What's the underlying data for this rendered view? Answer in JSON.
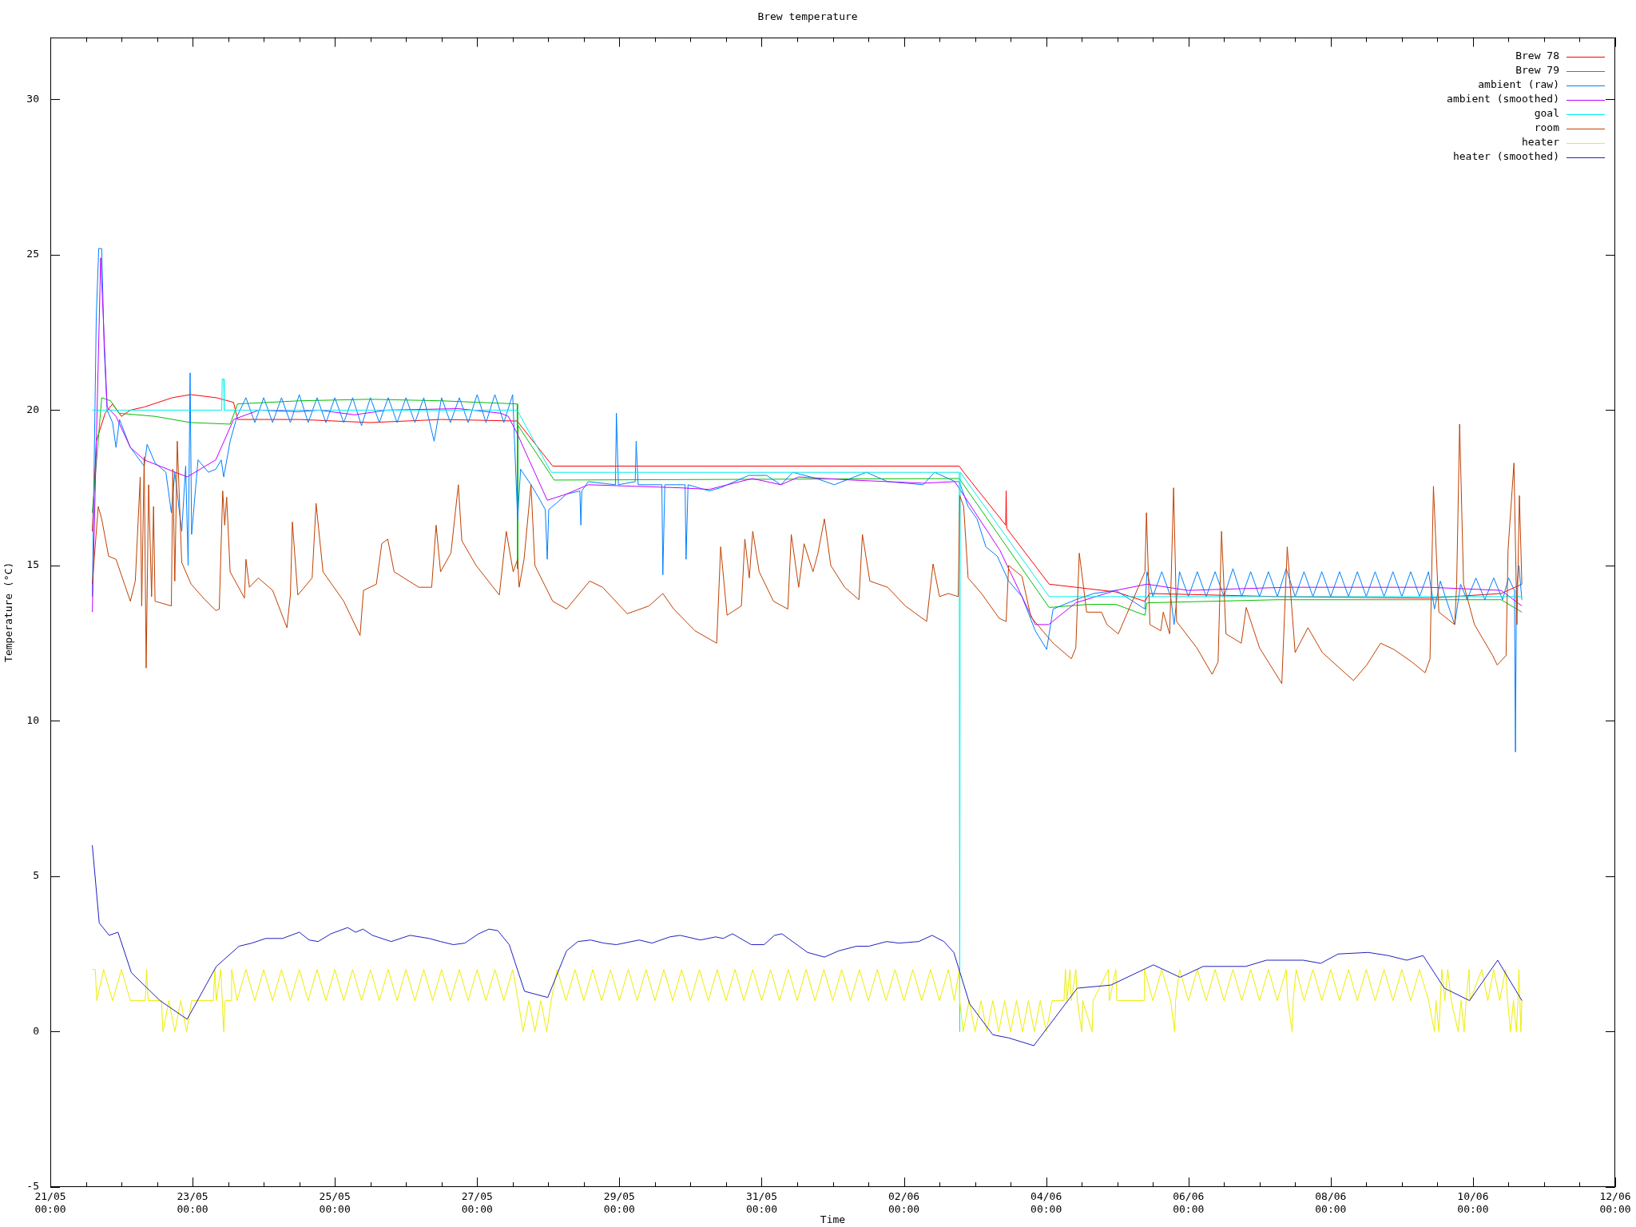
{
  "chart_data": {
    "type": "line",
    "title": "Brew temperature",
    "xlabel": "Time",
    "ylabel": "Temperature (°C)",
    "xlim": [
      "--05-21T00:00",
      "--06-12T00:00"
    ],
    "ylim": [
      -5,
      32
    ],
    "xticks": [
      {
        "value": "--05-21T00:00",
        "label": "21/05\n00:00"
      },
      {
        "value": "--05-21T12:00",
        "label": null
      },
      {
        "value": "--05-22T00:00",
        "label": null
      },
      {
        "value": "--05-22T12:00",
        "label": null
      },
      {
        "value": "--05-23T00:00",
        "label": "23/05\n00:00"
      },
      {
        "value": "--05-23T12:00",
        "label": null
      },
      {
        "value": "--05-24T00:00",
        "label": null
      },
      {
        "value": "--05-24T12:00",
        "label": null
      },
      {
        "value": "--05-25T00:00",
        "label": "25/05\n00:00"
      },
      {
        "value": "--05-25T12:00",
        "label": null
      },
      {
        "value": "--05-26T00:00",
        "label": null
      },
      {
        "value": "--05-26T12:00",
        "label": null
      },
      {
        "value": "--05-27T00:00",
        "label": "27/05\n00:00"
      },
      {
        "value": "--05-27T12:00",
        "label": null
      },
      {
        "value": "--05-28T00:00",
        "label": null
      },
      {
        "value": "--05-28T12:00",
        "label": null
      },
      {
        "value": "--05-29T00:00",
        "label": "29/05\n00:00"
      },
      {
        "value": "--05-29T12:00",
        "label": null
      },
      {
        "value": "--05-30T00:00",
        "label": null
      },
      {
        "value": "--05-30T12:00",
        "label": null
      },
      {
        "value": "--05-31T00:00",
        "label": "31/05\n00:00"
      },
      {
        "value": "--05-31T12:00",
        "label": null
      },
      {
        "value": "--06-01T00:00",
        "label": null
      },
      {
        "value": "--06-01T12:00",
        "label": null
      },
      {
        "value": "--06-02T00:00",
        "label": "02/06\n00:00"
      },
      {
        "value": "--06-02T12:00",
        "label": null
      },
      {
        "value": "--06-03T00:00",
        "label": null
      },
      {
        "value": "--06-03T12:00",
        "label": null
      },
      {
        "value": "--06-04T00:00",
        "label": "04/06\n00:00"
      },
      {
        "value": "--06-04T12:00",
        "label": null
      },
      {
        "value": "--06-05T00:00",
        "label": null
      },
      {
        "value": "--06-05T12:00",
        "label": null
      },
      {
        "value": "--06-06T00:00",
        "label": "06/06\n00:00"
      },
      {
        "value": "--06-06T12:00",
        "label": null
      },
      {
        "value": "--06-07T00:00",
        "label": null
      },
      {
        "value": "--06-07T12:00",
        "label": null
      },
      {
        "value": "--06-08T00:00",
        "label": "08/06\n00:00"
      },
      {
        "value": "--06-08T12:00",
        "label": null
      },
      {
        "value": "--06-09T00:00",
        "label": null
      },
      {
        "value": "--06-09T12:00",
        "label": null
      },
      {
        "value": "--06-10T00:00",
        "label": "10/06\n00:00"
      },
      {
        "value": "--06-10T12:00",
        "label": null
      },
      {
        "value": "--06-11T00:00",
        "label": null
      },
      {
        "value": "--06-11T12:00",
        "label": null
      },
      {
        "value": "--06-12T00:00",
        "label": "12/06\n00:00"
      }
    ],
    "yticks": [
      -5,
      0,
      5,
      10,
      15,
      20,
      25,
      30
    ],
    "grid": false,
    "legend": "top right",
    "marker": "none",
    "line_style": "solid",
    "series": [
      {
        "name": "Brew 78",
        "color": "#ff0000",
        "x": [
          "--05-21T14:10",
          "--05-21T15:30",
          "--05-21T18:30",
          "--05-21T21:00",
          "--05-22T00:00",
          "--05-22T03:00",
          "--05-22T07:40",
          "--05-22T17:10",
          "--05-22T23:20",
          "--05-23T08:00",
          "--05-23T13:50",
          "--05-23T15:10",
          "--05-24T12:00",
          "--05-25T12:00",
          "--05-26T12:00",
          "--05-27T13:30",
          "--05-28T01:30",
          "--06-02T18:40",
          "--06-02T20:10",
          "--06-03T10:20",
          "--06-03T10:30",
          "--06-03T10:40",
          "--06-04T01:00",
          "--06-04T10:00",
          "--06-04T23:30",
          "--06-05T09:20",
          "--06-05T10:50",
          "--06-07T06:00",
          "--06-09T09:20",
          "--06-10T09:30",
          "--06-10T16:30"
        ],
        "values": [
          16.1,
          19.0,
          19.9,
          20.2,
          19.8,
          20.0,
          20.1,
          20.4,
          20.5,
          20.4,
          20.25,
          19.7,
          19.7,
          19.6,
          19.7,
          19.65,
          18.2,
          18.2,
          18.0,
          16.3,
          17.4,
          16.2,
          14.4,
          14.3,
          14.15,
          13.85,
          14.1,
          14.0,
          13.95,
          14.1,
          14.4
        ]
      },
      {
        "name": "Brew 79",
        "color": "#00c000",
        "x": [
          "--05-21T14:10",
          "--05-21T17:20",
          "--05-21T20:20",
          "--05-21T23:10",
          "--05-22T11:20",
          "--05-22T23:20",
          "--05-23T12:40",
          "--05-23T15:10",
          "--05-24T12:00",
          "--05-25T12:00",
          "--05-26T12:00",
          "--05-27T13:30",
          "--05-27T13:40",
          "--05-27T13:50",
          "--05-28T02:00",
          "--06-02T18:40",
          "--06-04T01:00",
          "--06-04T14:20",
          "--06-04T23:30",
          "--06-05T09:20",
          "--06-05T10:00",
          "--06-07T06:00",
          "--06-10T09:30",
          "--06-10T16:30"
        ],
        "values": [
          16.7,
          20.4,
          20.3,
          19.9,
          19.8,
          19.6,
          19.55,
          20.2,
          20.3,
          20.35,
          20.3,
          20.2,
          14.9,
          19.5,
          17.75,
          17.8,
          13.65,
          13.75,
          13.75,
          13.4,
          13.8,
          13.9,
          13.9,
          13.5
        ]
      },
      {
        "name": "ambient (raw)",
        "color": "#0080ff",
        "x": [
          "--05-21T14:10",
          "--05-21T15:30",
          "--05-21T16:20",
          "--05-21T17:20",
          "--05-21T18:10",
          "--05-21T19:10",
          "--05-21T21:00",
          "--05-21T22:10",
          "--05-21T23:20",
          "--05-22T03:00",
          "--05-22T07:40",
          "--05-22T08:40",
          "--05-22T11:20",
          "--05-22T15:00",
          "--05-22T16:50",
          "--05-22T18:00",
          "--05-22T20:20",
          "--05-22T21:40",
          "--05-22T22:30",
          "--05-22T23:10",
          "--05-22T23:40",
          "--05-23T01:50",
          "--05-23T05:20",
          "--05-23T07:50",
          "--05-23T09:40",
          "--05-23T10:30",
          "--05-23T12:40",
          "--05-23T15:00",
          "--05-23T18:00",
          "--05-23T21:00",
          "--05-24T00:00",
          "--05-24T03:00",
          "--05-24T06:00",
          "--05-24T09:00",
          "--05-24T12:00",
          "--05-24T15:00",
          "--05-24T18:00",
          "--05-24T21:00",
          "--05-25T00:00",
          "--05-25T03:00",
          "--05-25T06:00",
          "--05-25T09:00",
          "--05-25T12:00",
          "--05-25T15:00",
          "--05-25T18:00",
          "--05-25T21:00",
          "--05-26T00:00",
          "--05-26T03:00",
          "--05-26T06:00",
          "--05-26T09:30",
          "--05-26T12:00",
          "--05-26T15:00",
          "--05-26T18:00",
          "--05-26T21:00",
          "--05-27T00:00",
          "--05-27T03:00",
          "--05-27T06:00",
          "--05-27T09:00",
          "--05-27T12:00",
          "--05-27T13:40",
          "--05-27T14:40",
          "--05-27T18:10",
          "--05-27T20:40",
          "--05-27T23:00",
          "--05-27T23:40",
          "--05-28T00:10",
          "--05-28T02:40",
          "--05-28T06:10",
          "--05-28T10:40",
          "--05-28T11:00",
          "--05-28T11:20",
          "--05-28T13:30",
          "--05-28T22:40",
          "--05-28T23:00",
          "--05-28T23:40",
          "--05-29T05:20",
          "--05-29T05:40",
          "--05-29T06:20",
          "--05-29T14:20",
          "--05-29T14:40",
          "--05-29T15:20",
          "--05-29T22:10",
          "--05-29T22:30",
          "--05-29T23:10",
          "--05-30T06:20",
          "--05-30T10:00",
          "--05-30T19:40",
          "--05-31T01:40",
          "--05-31T06:30",
          "--05-31T10:30",
          "--05-31T18:30",
          "--06-01T00:30",
          "--06-01T11:20",
          "--06-01T18:30",
          "--06-02T06:30",
          "--06-02T10:20",
          "--06-02T17:20",
          "--06-02T18:40",
          "--06-02T21:40",
          "--06-03T00:40",
          "--06-03T03:40",
          "--06-03T07:30",
          "--06-03T11:20",
          "--06-03T15:50",
          "--06-03T20:20",
          "--06-04T00:10",
          "--06-04T02:20",
          "--06-04T10:00",
          "--06-04T16:00",
          "--06-04T23:30",
          "--06-05T09:20",
          "--06-05T10:00",
          "--06-05T12:00",
          "--06-05T15:00",
          "--06-05T18:00",
          "--06-05T19:10",
          "--06-05T21:00",
          "--06-06T00:00",
          "--06-06T03:00",
          "--06-06T06:00",
          "--06-06T09:00",
          "--06-06T12:00",
          "--06-06T15:00",
          "--06-06T18:00",
          "--06-06T21:00",
          "--06-07T00:00",
          "--06-07T03:00",
          "--06-07T06:00",
          "--06-07T09:00",
          "--06-07T12:00",
          "--06-07T15:00",
          "--06-07T18:00",
          "--06-07T21:00",
          "--06-08T00:00",
          "--06-08T03:00",
          "--06-08T06:00",
          "--06-08T09:00",
          "--06-08T12:00",
          "--06-08T15:00",
          "--06-08T18:00",
          "--06-08T21:00",
          "--06-09T00:00",
          "--06-09T03:00",
          "--06-09T06:00",
          "--06-09T09:00",
          "--06-09T11:00",
          "--06-09T13:00",
          "--06-09T15:00",
          "--06-09T17:50",
          "--06-09T19:50",
          "--06-09T22:00",
          "--06-10T01:00",
          "--06-10T04:00",
          "--06-10T07:00",
          "--06-10T10:00",
          "--06-10T12:00",
          "--06-10T14:00",
          "--06-10T14:20",
          "--06-10T14:40",
          "--06-10T15:30",
          "--06-10T16:30"
        ],
        "values": [
          14.0,
          23.0,
          25.2,
          25.2,
          22.0,
          20.0,
          19.6,
          18.8,
          19.7,
          18.8,
          18.2,
          18.9,
          18.3,
          18.0,
          16.7,
          18.0,
          16.1,
          18.2,
          15.0,
          21.2,
          16.0,
          18.4,
          18.0,
          18.1,
          18.4,
          17.85,
          19.0,
          19.8,
          20.4,
          19.6,
          20.4,
          19.6,
          20.4,
          19.6,
          20.5,
          19.6,
          20.4,
          19.6,
          20.4,
          19.6,
          20.4,
          19.5,
          20.4,
          19.6,
          20.4,
          19.6,
          20.4,
          19.6,
          20.4,
          19.0,
          20.4,
          19.6,
          20.4,
          19.6,
          20.5,
          19.6,
          20.5,
          19.6,
          20.5,
          16.5,
          18.1,
          17.6,
          17.2,
          16.8,
          15.2,
          16.8,
          17.0,
          17.3,
          17.4,
          16.3,
          17.4,
          17.7,
          17.6,
          19.9,
          17.6,
          17.7,
          19.0,
          17.6,
          17.6,
          14.7,
          17.6,
          17.6,
          15.2,
          17.6,
          17.4,
          17.5,
          17.9,
          17.9,
          17.6,
          18.0,
          17.8,
          17.6,
          18.0,
          17.7,
          17.6,
          18.0,
          17.7,
          17.7,
          16.9,
          16.5,
          15.6,
          15.3,
          14.5,
          14.0,
          12.9,
          12.3,
          13.6,
          13.9,
          14.1,
          14.2,
          13.6,
          14.8,
          14.0,
          14.8,
          14.0,
          13.1,
          14.8,
          14.0,
          14.8,
          14.0,
          14.8,
          14.0,
          14.9,
          14.0,
          14.8,
          14.0,
          14.8,
          14.0,
          14.9,
          14.0,
          14.8,
          14.0,
          14.8,
          14.0,
          14.8,
          14.0,
          14.8,
          14.0,
          14.8,
          14.0,
          14.8,
          14.0,
          14.8,
          14.0,
          14.8,
          13.6,
          14.5,
          13.9,
          13.1,
          14.4,
          13.9,
          14.6,
          13.9,
          14.6,
          13.9,
          14.6,
          14.2,
          9.0,
          14.2,
          15.0,
          13.9
        ]
      },
      {
        "name": "ambient (smoothed)",
        "color": "#c000ff",
        "x": [
          "--05-21T14:10",
          "--05-21T17:00",
          "--05-21T19:10",
          "--05-21T22:10",
          "--05-22T03:00",
          "--05-22T07:40",
          "--05-22T22:10",
          "--05-23T07:50",
          "--05-23T13:50",
          "--05-23T22:20",
          "--05-24T11:30",
          "--05-24T18:40",
          "--05-25T06:40",
          "--05-25T17:30",
          "--05-26T17:40",
          "--05-27T08:00",
          "--05-27T10:30",
          "--05-27T13:30",
          "--05-27T23:40",
          "--05-28T06:10",
          "--05-28T13:30",
          "--05-29T20:40",
          "--05-30T06:20",
          "--05-30T20:50",
          "--05-31T06:30",
          "--05-31T12:30",
          "--06-01T06:30",
          "--06-02T06:30",
          "--06-02T17:10",
          "--06-03T08:20",
          "--06-03T20:20",
          "--06-04T00:50",
          "--06-04T10:00",
          "--06-04T23:30",
          "--06-05T10:00",
          "--06-05T23:50",
          "--06-07T09:00",
          "--06-09T09:20",
          "--06-10T09:30",
          "--06-10T16:30"
        ],
        "values": [
          13.5,
          24.9,
          20.1,
          19.8,
          18.8,
          18.4,
          17.85,
          18.4,
          19.7,
          20.0,
          19.95,
          20.0,
          19.85,
          20.0,
          20.05,
          19.9,
          19.8,
          19.25,
          17.1,
          17.3,
          17.6,
          17.5,
          17.45,
          17.8,
          17.6,
          17.85,
          17.75,
          17.65,
          17.7,
          15.5,
          13.1,
          13.1,
          13.8,
          14.2,
          14.4,
          14.2,
          14.3,
          14.3,
          14.2,
          13.7
        ]
      },
      {
        "name": "goal",
        "color": "#00eeee",
        "x": [
          "--05-21T14:10",
          "--05-23T09:50",
          "--05-23T10:00",
          "--05-23T10:30",
          "--05-23T10:40",
          "--05-27T13:30",
          "--05-28T01:00",
          "--06-02T18:40",
          "--06-02T18:50",
          "--06-02T19:00",
          "--06-04T01:00",
          "--06-10T16:30"
        ],
        "values": [
          20,
          20,
          21,
          21,
          20,
          20,
          18,
          18,
          0,
          18,
          14,
          14
        ]
      },
      {
        "name": "room",
        "color": "#c04000",
        "x": [
          "--05-21T14:10",
          "--05-21T16:10",
          "--05-21T17:20",
          "--05-21T19:40",
          "--05-21T22:10",
          "--05-22T03:00",
          "--05-22T04:40",
          "--05-22T06:20",
          "--05-22T06:50",
          "--05-22T07:40",
          "--05-22T08:20",
          "--05-22T09:10",
          "--05-22T10:10",
          "--05-22T10:50",
          "--05-22T11:20",
          "--05-22T16:50",
          "--05-22T17:20",
          "--05-22T18:00",
          "--05-22T18:50",
          "--05-22T20:20",
          "--05-22T23:30",
          "--05-23T04:10",
          "--05-23T07:50",
          "--05-23T09:00",
          "--05-23T10:10",
          "--05-23T10:50",
          "--05-23T11:30",
          "--05-23T12:40",
          "--05-23T17:30",
          "--05-23T18:00",
          "--05-23T19:10",
          "--05-23T22:10",
          "--05-24T03:00",
          "--05-24T07:50",
          "--05-24T09:00",
          "--05-24T09:40",
          "--05-24T11:30",
          "--05-24T16:20",
          "--05-24T17:40",
          "--05-24T20:00",
          "--05-25T03:00",
          "--05-25T08:30",
          "--05-25T09:40",
          "--05-25T14:00",
          "--05-25T15:50",
          "--05-25T17:50",
          "--05-25T20:00",
          "--05-26T04:20",
          "--05-26T08:40",
          "--05-26T10:10",
          "--05-26T11:40",
          "--05-26T15:10",
          "--05-26T17:40",
          "--05-26T18:50",
          "--05-26T23:40",
          "--05-27T07:30",
          "--05-27T09:50",
          "--05-27T12:10",
          "--05-27T13:40",
          "--05-27T14:10",
          "--05-27T15:50",
          "--05-27T18:10",
          "--05-27T19:30",
          "--05-28T01:30",
          "--05-28T06:10",
          "--05-28T14:00",
          "--05-28T18:20",
          "--05-29T02:40",
          "--05-29T10:00",
          "--05-29T14:40",
          "--05-29T18:20",
          "--05-30T01:30",
          "--05-30T08:50",
          "--05-30T10:10",
          "--05-30T12:20",
          "--05-30T17:10",
          "--05-30T18:20",
          "--05-30T19:50",
          "--05-30T21:00",
          "--05-30T23:10",
          "--05-31T04:00",
          "--05-31T08:50",
          "--05-31T10:00",
          "--05-31T12:30",
          "--05-31T14:20",
          "--05-31T17:20",
          "--05-31T19:00",
          "--05-31T21:10",
          "--05-31T23:20",
          "--06-01T04:00",
          "--06-01T08:50",
          "--06-01T10:00",
          "--06-01T12:30",
          "--06-01T18:30",
          "--06-02T00:30",
          "--06-02T07:40",
          "--06-02T09:50",
          "--06-02T12:00",
          "--06-02T15:00",
          "--06-02T18:20",
          "--06-02T18:50",
          "--06-02T20:10",
          "--06-02T21:40",
          "--06-03T02:10",
          "--06-03T08:10",
          "--06-03T10:30",
          "--06-03T11:20",
          "--06-03T15:50",
          "--06-03T18:50",
          "--06-04T02:20",
          "--06-04T08:30",
          "--06-04T10:00",
          "--06-04T11:10",
          "--06-04T13:40",
          "--06-04T18:40",
          "--06-04T20:30",
          "--06-05T00:20",
          "--06-05T09:20",
          "--06-05T09:50",
          "--06-05T11:00",
          "--06-05T14:40",
          "--06-05T15:30",
          "--06-05T17:40",
          "--06-05T19:00",
          "--06-05T20:00",
          "--06-06T02:50",
          "--06-06T08:00",
          "--06-06T10:00",
          "--06-06T11:10",
          "--06-06T12:40",
          "--06-06T17:50",
          "--06-06T19:30",
          "--06-07T00:00",
          "--06-07T07:30",
          "--06-07T09:20",
          "--06-07T12:00",
          "--06-07T16:20",
          "--06-07T21:10",
          "--06-08T07:40",
          "--06-08T12:10",
          "--06-08T16:50",
          "--06-08T21:20",
          "--06-09T03:20",
          "--06-09T07:50",
          "--06-09T09:30",
          "--06-09T10:40",
          "--06-09T12:30",
          "--06-09T17:50",
          "--06-09T18:30",
          "--06-09T19:30",
          "--06-09T20:50",
          "--06-10T00:30",
          "--06-10T06:40",
          "--06-10T08:10",
          "--06-10T11:10",
          "--06-10T11:50",
          "--06-10T13:50",
          "--06-10T14:50",
          "--06-10T15:40",
          "--06-10T16:30"
        ],
        "values": [
          14.4,
          16.9,
          16.5,
          15.3,
          15.2,
          13.85,
          14.5,
          17.85,
          13.7,
          18.5,
          11.7,
          17.6,
          14.0,
          16.9,
          13.85,
          13.7,
          18.1,
          14.5,
          19.0,
          15.1,
          14.4,
          13.9,
          13.55,
          13.6,
          17.4,
          16.3,
          17.2,
          14.8,
          13.95,
          15.2,
          14.3,
          14.6,
          14.2,
          13.0,
          14.05,
          16.4,
          14.05,
          14.6,
          17.0,
          14.8,
          13.85,
          12.75,
          14.2,
          14.4,
          15.7,
          15.85,
          14.8,
          14.3,
          14.3,
          16.3,
          14.8,
          15.4,
          17.6,
          15.8,
          15.0,
          14.05,
          16.1,
          14.8,
          15.2,
          14.3,
          15.2,
          17.6,
          15.0,
          13.85,
          13.6,
          14.5,
          14.3,
          13.45,
          13.7,
          14.1,
          13.6,
          12.9,
          12.5,
          15.6,
          13.4,
          13.7,
          15.85,
          14.6,
          16.1,
          14.8,
          13.85,
          13.6,
          16.0,
          14.3,
          15.7,
          14.8,
          15.4,
          16.5,
          15.0,
          14.3,
          13.9,
          16.0,
          14.5,
          14.3,
          13.7,
          13.2,
          15.05,
          14.0,
          14.1,
          14.0,
          17.25,
          16.9,
          14.6,
          14.1,
          13.3,
          13.2,
          15.0,
          14.65,
          13.35,
          12.5,
          12.0,
          12.35,
          15.4,
          13.5,
          13.5,
          13.1,
          12.8,
          14.8,
          16.7,
          13.1,
          12.9,
          13.5,
          12.8,
          17.5,
          13.2,
          12.35,
          11.5,
          11.9,
          16.1,
          12.8,
          12.5,
          13.65,
          12.35,
          11.2,
          15.6,
          12.2,
          13.0,
          12.2,
          11.3,
          11.8,
          12.5,
          12.3,
          11.9,
          11.55,
          12.0,
          17.55,
          13.5,
          13.1,
          14.4,
          19.55,
          14.4,
          13.1,
          12.1,
          11.8,
          12.1,
          15.5,
          18.3,
          13.1,
          17.25,
          14.4
        ]
      },
      {
        "name": "heater",
        "color": "#eeee00",
        "x": [
          "--05-21T14:10",
          "--05-21T15:10",
          "--05-21T15:40",
          "--05-21T18:00",
          "--05-21T21:00",
          "--05-22T00:00",
          "--05-22T03:00",
          "--05-22T08:00",
          "--05-22T08:30",
          "--05-22T09:00",
          "--05-22T13:30",
          "--05-22T14:00",
          "--05-22T16:00",
          "--05-22T18:00",
          "--05-22T20:00",
          "--05-22T22:00",
          "--05-22T23:40",
          "--05-23T07:00",
          "--05-23T07:30",
          "--05-23T08:00",
          "--05-23T09:30",
          "--05-23T10:00",
          "--05-23T10:30",
          "--05-23T11:00",
          "--05-23T13:00",
          "--05-23T13:10",
          "--05-23T15:00",
          "--05-23T18:00",
          "--05-23T21:00",
          "--05-24T00:00",
          "--05-24T03:00",
          "--05-24T06:00",
          "--05-24T09:00",
          "--05-24T12:00",
          "--05-24T15:00",
          "--05-24T18:00",
          "--05-24T21:00",
          "--05-25T00:00",
          "--05-25T03:00",
          "--05-25T06:00",
          "--05-25T09:00",
          "--05-25T12:00",
          "--05-25T15:00",
          "--05-25T18:00",
          "--05-25T21:00",
          "--05-26T00:00",
          "--05-26T03:00",
          "--05-26T06:00",
          "--05-26T09:00",
          "--05-26T12:00",
          "--05-26T15:00",
          "--05-26T18:00",
          "--05-26T21:00",
          "--05-27T00:00",
          "--05-27T03:00",
          "--05-27T06:00",
          "--05-27T09:00",
          "--05-27T12:00",
          "--05-27T13:50",
          "--05-27T15:30",
          "--05-27T17:30",
          "--05-27T19:30",
          "--05-27T21:30",
          "--05-27T23:30",
          "--05-28T01:00",
          "--05-28T03:00",
          "--05-28T06:00",
          "--05-28T09:00",
          "--05-28T12:00",
          "--05-28T15:00",
          "--05-28T18:00",
          "--05-28T21:00",
          "--05-29T00:00",
          "--05-29T03:00",
          "--05-29T06:00",
          "--05-29T09:00",
          "--05-29T12:00",
          "--05-29T15:00",
          "--05-29T18:00",
          "--05-29T21:00",
          "--05-30T00:00",
          "--05-30T03:00",
          "--05-30T06:00",
          "--05-30T09:00",
          "--05-30T12:00",
          "--05-30T15:00",
          "--05-30T18:00",
          "--05-30T21:00",
          "--05-31T00:00",
          "--05-31T03:00",
          "--05-31T06:00",
          "--05-31T09:00",
          "--05-31T12:00",
          "--05-31T15:00",
          "--05-31T18:00",
          "--05-31T21:00",
          "--06-01T00:00",
          "--06-01T03:00",
          "--06-01T06:00",
          "--06-01T09:00",
          "--06-01T12:00",
          "--06-01T15:00",
          "--06-01T18:00",
          "--06-01T21:00",
          "--06-02T00:00",
          "--06-02T03:00",
          "--06-02T06:00",
          "--06-02T09:00",
          "--06-02T12:00",
          "--06-02T15:00",
          "--06-02T17:00",
          "--06-02T18:40",
          "--06-02T18:50",
          "--06-02T20:00",
          "--06-02T22:00",
          "--06-03T00:00",
          "--06-03T02:00",
          "--06-03T04:00",
          "--06-03T06:00",
          "--06-03T08:00",
          "--06-03T10:00",
          "--06-03T12:00",
          "--06-03T14:00",
          "--06-03T16:00",
          "--06-03T18:00",
          "--06-03T20:00",
          "--06-03T22:00",
          "--06-04T00:00",
          "--06-04T02:00",
          "--06-04T06:00",
          "--06-04T06:30",
          "--06-04T07:00",
          "--06-04T08:00",
          "--06-04T08:30",
          "--06-04T10:00",
          "--06-04T10:30",
          "--06-04T12:00",
          "--06-04T12:20",
          "--06-04T15:30",
          "--06-04T15:50",
          "--06-04T21:00",
          "--06-04T21:20",
          "--06-04T23:30",
          "--06-04T23:50",
          "--06-05T09:00",
          "--06-05T09:10",
          "--06-05T12:00",
          "--06-05T15:00",
          "--06-05T18:00",
          "--06-05T19:20",
          "--06-05T19:40",
          "--06-05T21:00",
          "--06-06T00:00",
          "--06-06T03:00",
          "--06-06T06:00",
          "--06-06T09:00",
          "--06-06T12:00",
          "--06-06T15:00",
          "--06-06T18:00",
          "--06-06T21:00",
          "--06-07T00:00",
          "--06-07T03:00",
          "--06-07T06:00",
          "--06-07T09:00",
          "--06-07T09:30",
          "--06-07T11:00",
          "--06-07T11:20",
          "--06-07T12:20",
          "--06-07T15:00",
          "--06-07T18:00",
          "--06-07T21:00",
          "--06-08T00:00",
          "--06-08T03:00",
          "--06-08T06:00",
          "--06-08T09:00",
          "--06-08T12:00",
          "--06-08T15:00",
          "--06-08T18:00",
          "--06-08T21:00",
          "--06-09T00:00",
          "--06-09T03:00",
          "--06-09T06:00",
          "--06-09T09:00",
          "--06-09T11:00",
          "--06-09T11:30",
          "--06-09T12:30",
          "--06-09T13:00",
          "--06-09T13:30",
          "--06-09T14:30",
          "--06-09T15:30",
          "--06-09T16:40",
          "--06-09T19:00",
          "--06-09T20:00",
          "--06-09T21:00",
          "--06-09T21:40",
          "--06-09T22:40",
          "--06-09T23:00",
          "--06-10T03:00",
          "--06-10T05:00",
          "--06-10T07:00",
          "--06-10T09:00",
          "--06-10T11:00",
          "--06-10T11:40",
          "--06-10T12:40",
          "--06-10T13:40",
          "--06-10T14:40",
          "--06-10T15:10",
          "--06-10T15:30",
          "--06-10T15:50",
          "--06-10T16:10",
          "--06-10T16:30"
        ],
        "values": [
          2,
          2,
          1,
          2,
          1,
          2,
          1,
          1,
          2,
          1,
          1,
          0,
          1,
          0,
          1,
          0,
          1,
          1,
          2,
          1,
          2,
          1,
          0,
          1,
          1,
          2,
          1,
          2,
          1,
          2,
          1,
          2,
          1,
          2,
          1,
          2,
          1,
          2,
          1,
          2,
          1,
          2,
          1,
          2,
          1,
          2,
          1,
          2,
          1,
          2,
          1,
          2,
          1,
          2,
          1,
          2,
          1,
          2,
          1,
          0,
          1,
          0,
          1,
          0,
          1,
          2,
          1,
          2,
          1,
          2,
          1,
          2,
          1,
          2,
          1,
          2,
          1,
          2,
          1,
          2,
          1,
          2,
          1,
          2,
          1,
          2,
          1,
          2,
          1,
          2,
          1,
          2,
          1,
          2,
          1,
          2,
          1,
          2,
          1,
          2,
          1,
          2,
          1,
          2,
          1,
          2,
          1,
          2,
          1,
          2,
          1,
          2,
          1,
          0,
          1,
          0,
          1,
          0,
          1,
          0,
          1,
          0,
          1,
          0,
          1,
          0,
          1,
          0,
          1,
          1,
          2,
          1,
          2,
          1,
          2,
          1,
          0,
          1,
          0,
          1,
          2,
          1,
          2,
          1,
          1,
          2,
          1,
          2,
          1,
          0,
          1,
          2,
          1,
          2,
          1,
          2,
          1,
          2,
          1,
          2,
          1,
          2,
          1,
          2,
          1,
          0,
          1,
          2,
          1,
          2,
          1,
          2,
          1,
          2,
          1,
          2,
          1,
          2,
          1,
          2,
          1,
          2,
          1,
          0,
          1,
          0,
          1,
          2,
          1,
          2,
          1,
          0,
          1,
          0,
          1,
          2,
          1,
          2,
          1,
          2,
          1,
          2,
          1,
          0,
          1,
          0,
          1,
          2,
          1,
          0,
          1
        ]
      },
      {
        "name": "heater (smoothed)",
        "color": "#2020c0",
        "x": [
          "--05-21T14:10",
          "--05-21T16:30",
          "--05-21T17:20",
          "--05-21T19:50",
          "--05-21T22:50",
          "--05-22T03:20",
          "--05-22T13:00",
          "--05-22T22:10",
          "--05-23T08:00",
          "--05-23T15:40",
          "--05-23T20:00",
          "--05-24T00:40",
          "--05-24T06:20",
          "--05-24T12:00",
          "--05-24T15:20",
          "--05-24T18:20",
          "--05-24T22:40",
          "--05-25T04:20",
          "--05-25T07:00",
          "--05-25T09:30",
          "--05-25T12:40",
          "--05-25T19:00",
          "--05-26T01:20",
          "--05-26T07:50",
          "--05-26T11:40",
          "--05-26T16:00",
          "--05-26T19:50",
          "--05-27T00:30",
          "--05-27T04:00",
          "--05-27T07:00",
          "--05-27T10:50",
          "--05-27T16:00",
          "--05-27T23:50",
          "--05-28T06:10",
          "--05-28T10:00",
          "--05-28T14:20",
          "--05-28T18:40",
          "--05-28T23:00",
          "--05-29T06:40",
          "--05-29T11:00",
          "--05-29T17:00",
          "--05-29T20:30",
          "--05-30T03:20",
          "--05-30T08:30",
          "--05-30T11:00",
          "--05-30T14:10",
          "--05-30T20:30",
          "--05-31T00:50",
          "--05-31T04:20",
          "--05-31T06:50",
          "--05-31T15:30",
          "--05-31T21:10",
          "--06-01T02:00",
          "--06-01T08:00",
          "--06-01T12:10",
          "--06-01T18:10",
          "--06-01T22:20",
          "--06-02T05:00",
          "--06-02T09:30",
          "--06-02T13:30",
          "--06-02T16:50",
          "--06-02T22:10",
          "--06-03T06:00",
          "--06-03T11:20",
          "--06-03T19:50",
          "--06-04T10:30",
          "--06-04T21:50",
          "--06-05T12:10",
          "--06-05T21:10",
          "--06-06T05:00",
          "--06-06T19:20",
          "--06-07T02:20",
          "--06-07T14:40",
          "--06-07T20:40",
          "--06-08T02:30",
          "--06-08T12:40",
          "--06-08T19:20",
          "--06-09T01:40",
          "--06-09T07:10",
          "--06-09T14:20",
          "--06-09T22:50",
          "--06-10T08:20",
          "--06-10T16:30"
        ],
        "values": [
          6.0,
          3.5,
          3.4,
          3.1,
          3.2,
          1.9,
          1.0,
          0.4,
          2.1,
          2.75,
          2.85,
          3.0,
          3.0,
          3.2,
          2.95,
          2.9,
          3.15,
          3.35,
          3.2,
          3.3,
          3.1,
          2.9,
          3.1,
          3.0,
          2.9,
          2.8,
          2.85,
          3.15,
          3.3,
          3.25,
          2.8,
          1.3,
          1.1,
          2.6,
          2.9,
          2.95,
          2.85,
          2.8,
          2.95,
          2.85,
          3.05,
          3.1,
          2.95,
          3.05,
          3.0,
          3.15,
          2.8,
          2.8,
          3.1,
          3.15,
          2.55,
          2.4,
          2.6,
          2.75,
          2.75,
          2.9,
          2.85,
          2.9,
          3.1,
          2.9,
          2.55,
          0.9,
          -0.1,
          -0.2,
          -0.45,
          1.4,
          1.5,
          2.15,
          1.75,
          2.1,
          2.1,
          2.3,
          2.3,
          2.2,
          2.5,
          2.55,
          2.45,
          2.3,
          2.45,
          1.4,
          1.0,
          2.3,
          1.0
        ]
      }
    ]
  }
}
